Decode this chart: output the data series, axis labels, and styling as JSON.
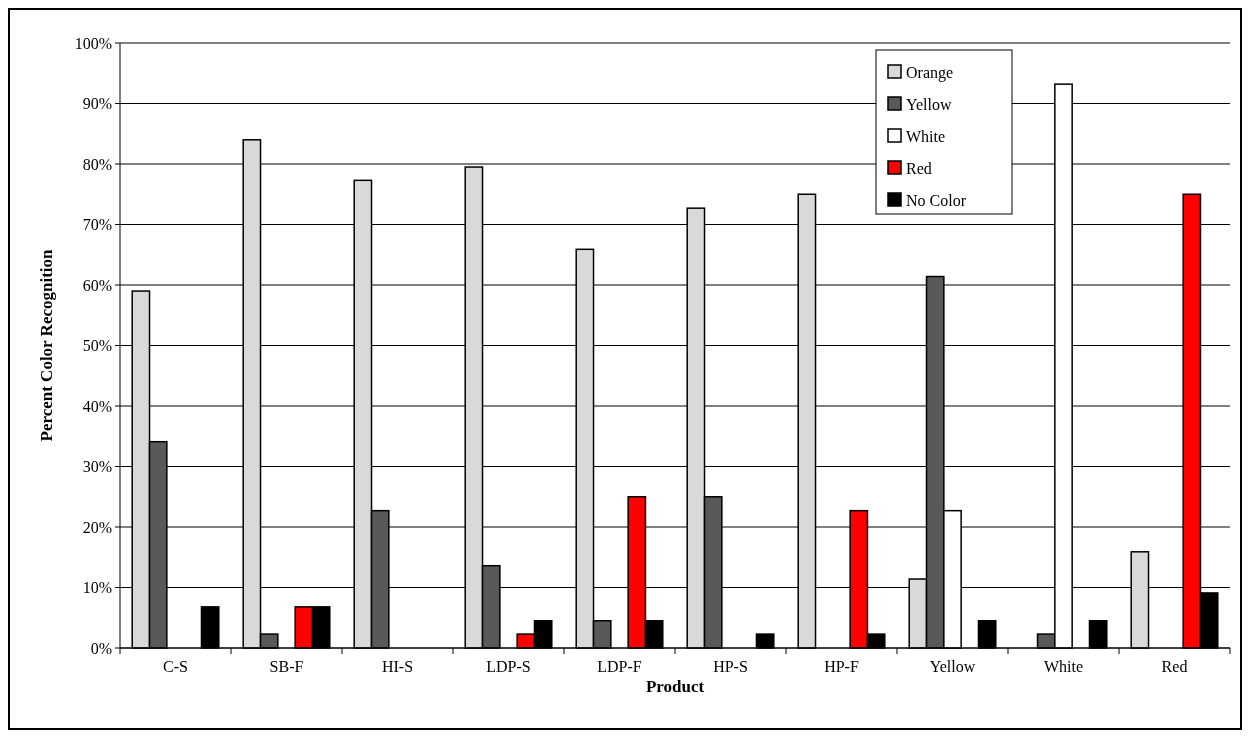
{
  "chart_data": {
    "type": "bar",
    "xlabel": "Product",
    "ylabel": "Percent Color Recognition",
    "categories": [
      "C-S",
      "SB-F",
      "HI-S",
      "LDP-S",
      "LDP-F",
      "HP-S",
      "HP-F",
      "Yellow",
      "White",
      "Red"
    ],
    "series": [
      {
        "name": "Orange",
        "color": "#d9d9d9",
        "values": [
          59,
          84,
          77.3,
          79.5,
          65.9,
          72.7,
          75,
          11.4,
          0,
          15.9
        ]
      },
      {
        "name": "Yellow",
        "color": "#595959",
        "values": [
          34.1,
          2.3,
          22.7,
          13.6,
          4.5,
          25,
          0,
          61.4,
          2.3,
          0
        ]
      },
      {
        "name": "White",
        "color": "#ffffff",
        "values": [
          0,
          0,
          0,
          0,
          0,
          0,
          0,
          22.7,
          93.2,
          0
        ]
      },
      {
        "name": "Red",
        "color": "#ff0000",
        "values": [
          0,
          6.8,
          0,
          2.3,
          25,
          0,
          22.7,
          0,
          0,
          75
        ]
      },
      {
        "name": "No Color",
        "color": "#000000",
        "values": [
          6.8,
          6.8,
          0,
          4.5,
          4.5,
          2.3,
          2.3,
          4.5,
          4.5,
          9.1
        ]
      }
    ],
    "ylim": [
      0,
      100
    ],
    "yticks": [
      {
        "value": 0,
        "label": "0%"
      },
      {
        "value": 10,
        "label": "10%"
      },
      {
        "value": 20,
        "label": "20%"
      },
      {
        "value": 30,
        "label": "30%"
      },
      {
        "value": 40,
        "label": "40%"
      },
      {
        "value": 50,
        "label": "50%"
      },
      {
        "value": 60,
        "label": "60%"
      },
      {
        "value": 70,
        "label": "70%"
      },
      {
        "value": 80,
        "label": "80%"
      },
      {
        "value": 90,
        "label": "90%"
      },
      {
        "value": 100,
        "label": "100%"
      }
    ],
    "grid": "y",
    "legend": "top right"
  }
}
